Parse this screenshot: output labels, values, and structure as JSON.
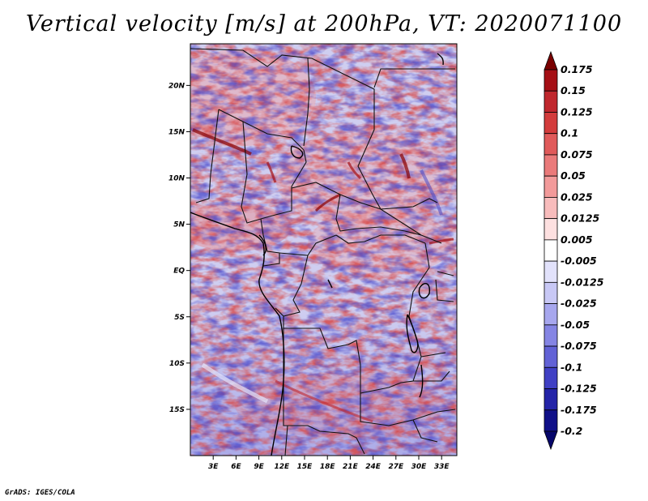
{
  "title": "Vertical velocity [m/s] at 200hPa, VT: 2020071100",
  "credit": "GrADS: IGES/COLA",
  "map": {
    "lat_labels": [
      "20N",
      "15N",
      "10N",
      "5N",
      "EQ",
      "5S",
      "10S",
      "15S"
    ],
    "lat_values": [
      20,
      15,
      10,
      5,
      0,
      -5,
      -10,
      -15
    ],
    "lon_labels": [
      "3E",
      "6E",
      "9E",
      "12E",
      "15E",
      "18E",
      "21E",
      "24E",
      "27E",
      "30E",
      "33E"
    ],
    "lon_values": [
      3,
      6,
      9,
      12,
      15,
      18,
      21,
      24,
      27,
      30,
      33
    ],
    "lat_range": [
      -20,
      24.5
    ],
    "lon_range": [
      0,
      35
    ]
  },
  "colorbar": {
    "labels": [
      "0.175",
      "0.15",
      "0.125",
      "0.1",
      "0.075",
      "0.05",
      "0.025",
      "0.0125",
      "0.005",
      "-0.005",
      "-0.0125",
      "-0.025",
      "-0.05",
      "-0.075",
      "-0.1",
      "-0.125",
      "-0.175",
      "-0.2"
    ],
    "colors": [
      "#7a0000",
      "#a50f15",
      "#c0272d",
      "#d33c3c",
      "#e05a5a",
      "#ea7a7a",
      "#f29a9a",
      "#f8bcbc",
      "#fde0e0",
      "#ffffff",
      "#e2e2fb",
      "#c8c8f5",
      "#a7a7ee",
      "#8585e4",
      "#6262d6",
      "#4040c4",
      "#2424a8",
      "#101088",
      "#06066a"
    ]
  }
}
